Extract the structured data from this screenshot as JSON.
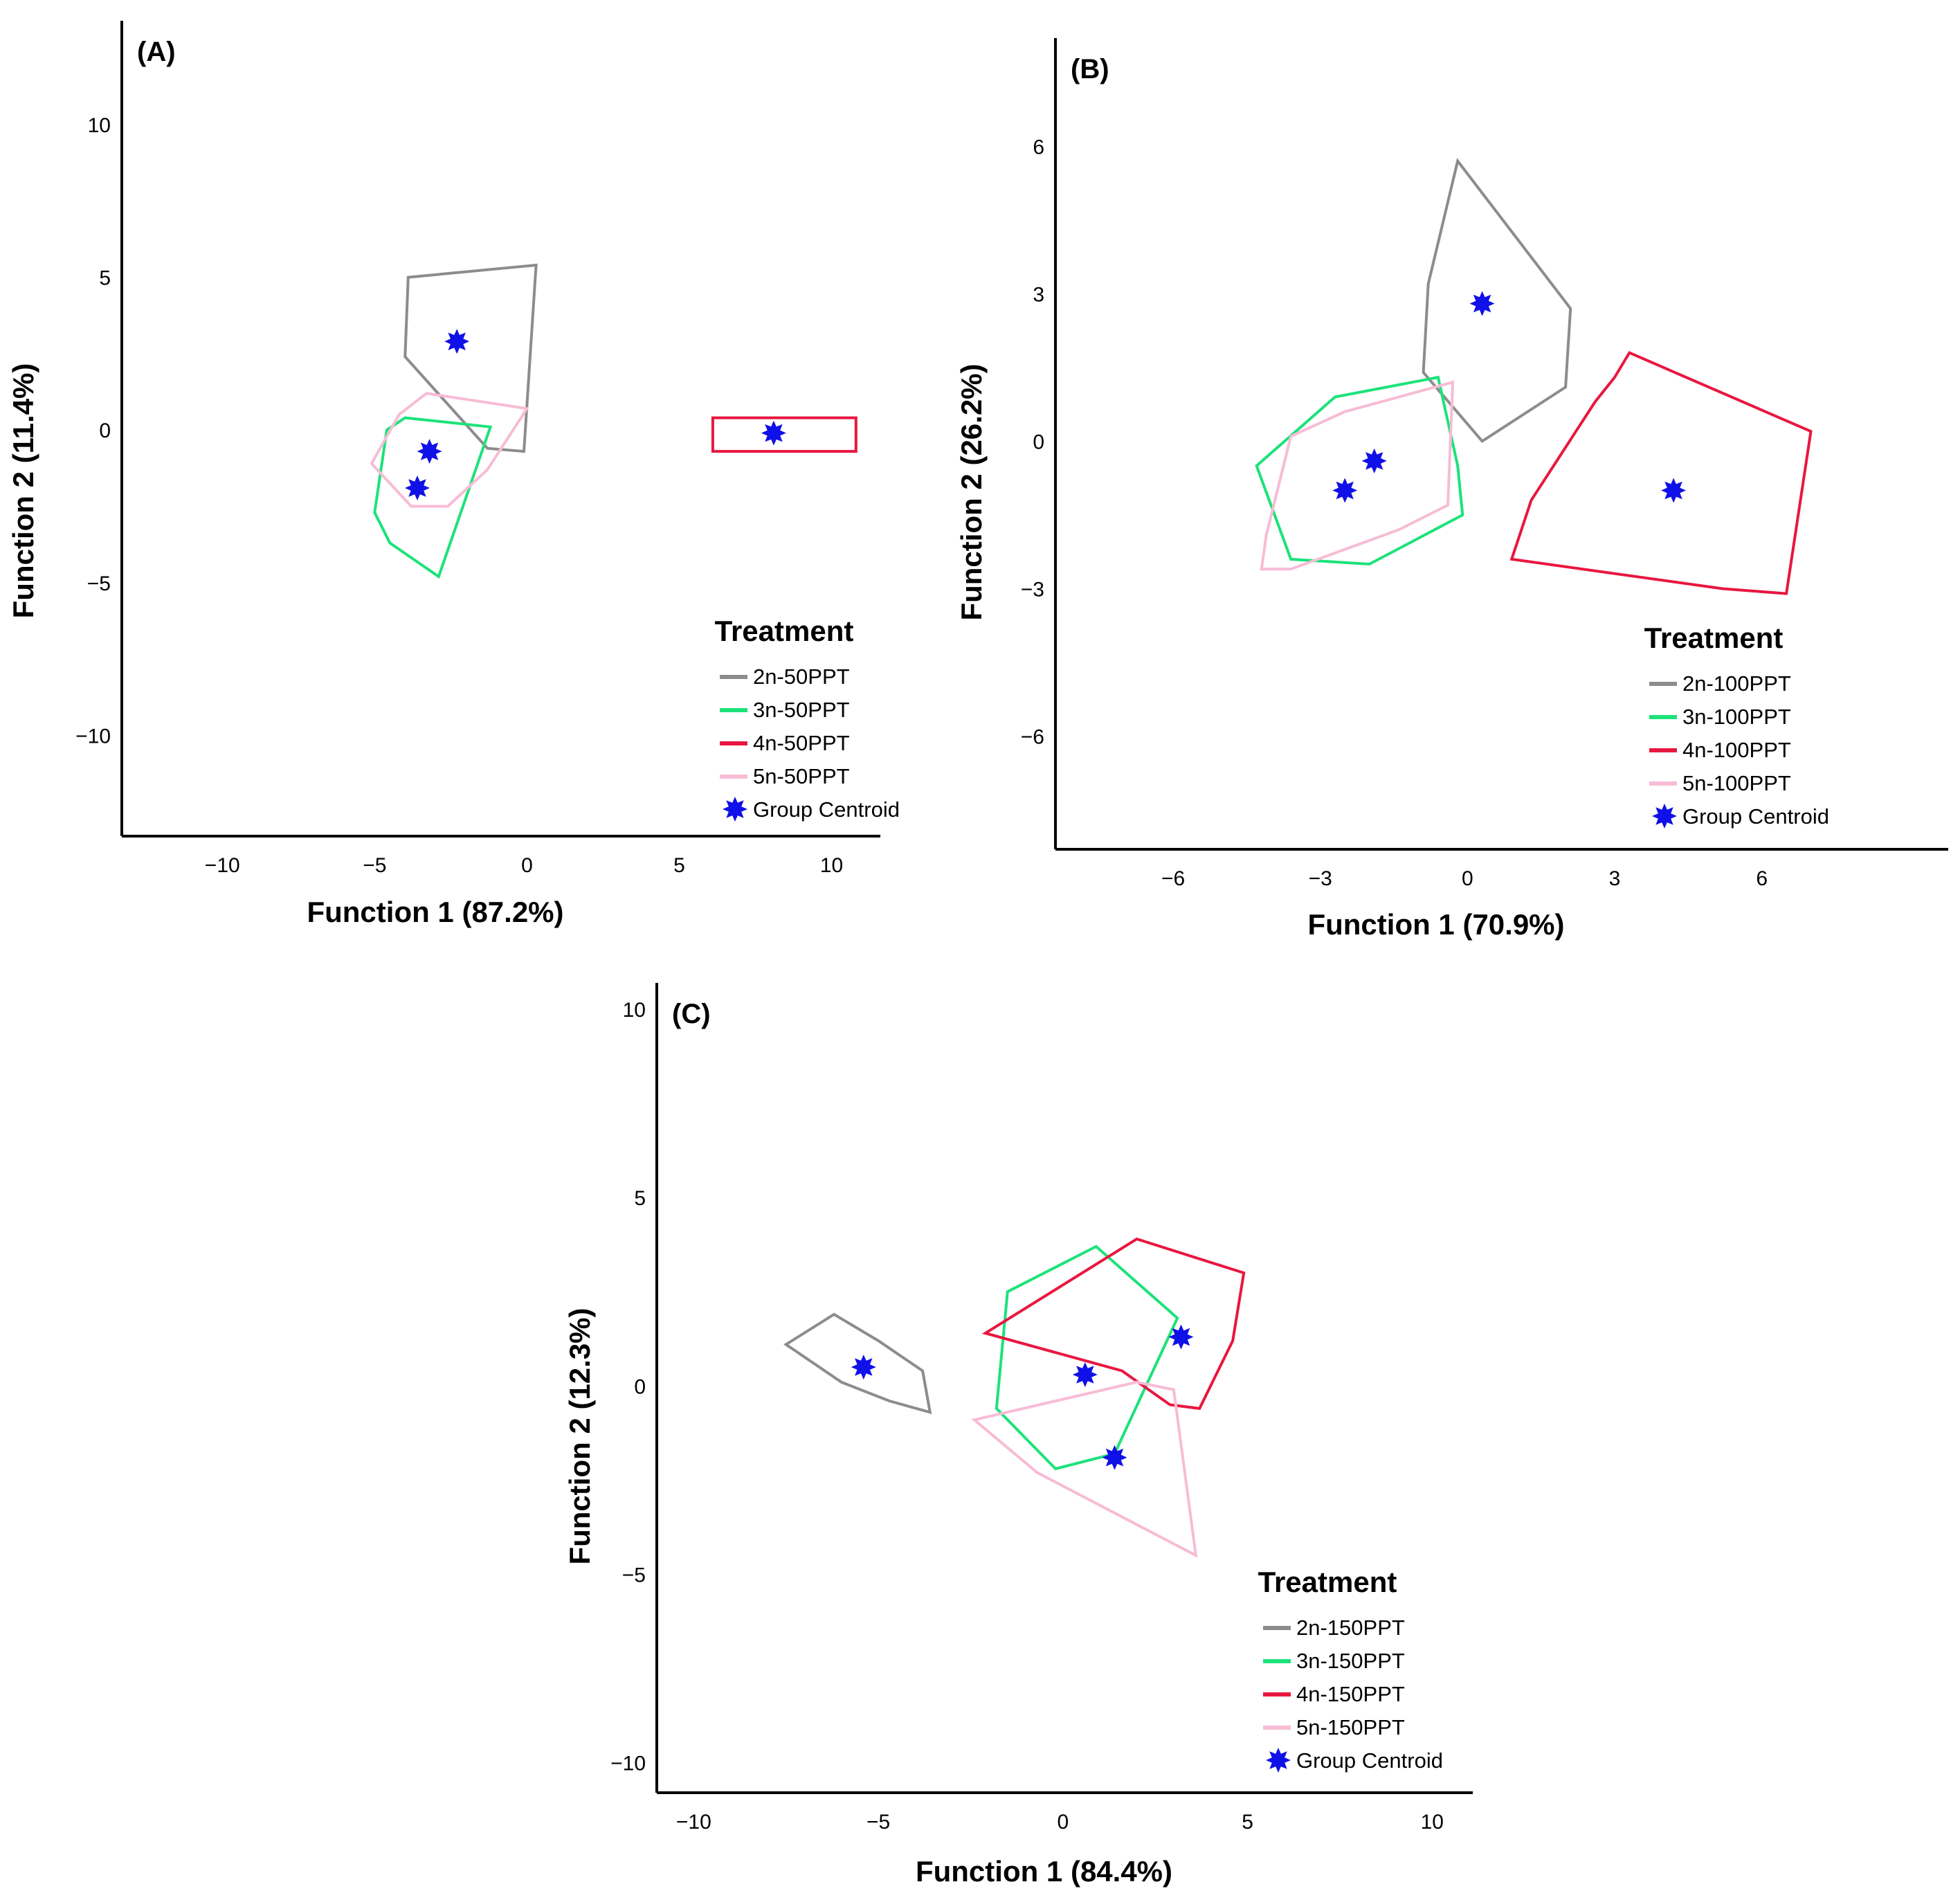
{
  "colors": {
    "2n": "#8c8c8c",
    "3n": "#1de27a",
    "4n": "#e8173f",
    "5n": "#f7bcd6",
    "centroid": "#1010e8",
    "axis": "#000000"
  },
  "chart_data": [
    {
      "type": "scatter",
      "panel_label": "(A)",
      "xlabel": "Function 1 (87.2%)",
      "ylabel": "Function 2 (11.4%)",
      "xlim": [
        -13.3,
        11.6
      ],
      "ylim": [
        -13.3,
        13.4
      ],
      "xticks": [
        -10,
        -5,
        0,
        5,
        10
      ],
      "yticks": [
        -10,
        -5,
        0,
        5,
        10
      ],
      "xtick_labels": [
        "−10",
        "−5",
        "0",
        "5",
        "10"
      ],
      "ytick_labels": [
        "−10",
        "−5",
        "0",
        "5",
        "10"
      ],
      "legend": {
        "title": "Treatment",
        "position": "bottom-right",
        "entries": [
          "2n-50PPT",
          "3n-50PPT",
          "4n-50PPT",
          "5n-50PPT",
          "Group Centroid"
        ]
      },
      "series": [
        {
          "name": "2n-50PPT",
          "color_key": "2n",
          "hull": [
            [
              -3.9,
              5.0
            ],
            [
              0.3,
              5.4
            ],
            [
              -0.1,
              -0.7
            ],
            [
              -1.3,
              -0.6
            ],
            [
              -4.0,
              2.4
            ]
          ],
          "centroid": [
            -2.3,
            2.9
          ]
        },
        {
          "name": "3n-50PPT",
          "color_key": "3n",
          "hull": [
            [
              -4.6,
              0.0
            ],
            [
              -4.0,
              0.4
            ],
            [
              -1.2,
              0.1
            ],
            [
              -2.9,
              -4.8
            ],
            [
              -4.5,
              -3.7
            ],
            [
              -5.0,
              -2.7
            ]
          ],
          "centroid": [
            -3.2,
            -0.7
          ]
        },
        {
          "name": "4n-50PPT",
          "color_key": "4n",
          "hull": [
            [
              6.1,
              0.4
            ],
            [
              10.8,
              0.4
            ],
            [
              10.8,
              -0.7
            ],
            [
              6.1,
              -0.7
            ]
          ],
          "centroid": [
            8.1,
            -0.1
          ]
        },
        {
          "name": "5n-50PPT",
          "color_key": "5n",
          "hull": [
            [
              -4.2,
              0.5
            ],
            [
              -3.3,
              1.2
            ],
            [
              0.0,
              0.7
            ],
            [
              -1.3,
              -1.3
            ],
            [
              -2.6,
              -2.5
            ],
            [
              -3.8,
              -2.5
            ],
            [
              -5.1,
              -1.1
            ]
          ],
          "centroid": [
            -3.6,
            -1.9
          ]
        }
      ]
    },
    {
      "type": "scatter",
      "panel_label": "(B)",
      "xlabel": "Function 1 (70.9%)",
      "ylabel": "Function 2 (26.2%)",
      "xlim": [
        -8.4,
        9.8
      ],
      "ylim": [
        -8.3,
        8.2
      ],
      "xticks": [
        -6,
        -3,
        0,
        3,
        6
      ],
      "yticks": [
        -6,
        -3,
        0,
        3,
        6
      ],
      "xtick_labels": [
        "−6",
        "−3",
        "0",
        "3",
        "6"
      ],
      "ytick_labels": [
        "−6",
        "−3",
        "0",
        "3",
        "6"
      ],
      "legend": {
        "title": "Treatment",
        "position": "bottom-right",
        "entries": [
          "2n-100PPT",
          "3n-100PPT",
          "4n-100PPT",
          "5n-100PPT",
          "Group Centroid"
        ]
      },
      "series": [
        {
          "name": "2n-100PPT",
          "color_key": "2n",
          "hull": [
            [
              -0.2,
              5.7
            ],
            [
              2.1,
              2.7
            ],
            [
              2.0,
              1.1
            ],
            [
              0.3,
              0.0
            ],
            [
              -0.9,
              1.4
            ],
            [
              -0.8,
              3.2
            ]
          ],
          "centroid": [
            0.3,
            2.8
          ]
        },
        {
          "name": "3n-100PPT",
          "color_key": "3n",
          "hull": [
            [
              -4.3,
              -0.5
            ],
            [
              -2.7,
              0.9
            ],
            [
              -0.6,
              1.3
            ],
            [
              -0.2,
              -0.5
            ],
            [
              -0.1,
              -1.5
            ],
            [
              -2.0,
              -2.5
            ],
            [
              -3.6,
              -2.4
            ]
          ],
          "centroid": [
            -2.5,
            -1.0
          ]
        },
        {
          "name": "4n-100PPT",
          "color_key": "4n",
          "hull": [
            [
              3.3,
              1.8
            ],
            [
              7.0,
              0.2
            ],
            [
              6.5,
              -3.1
            ],
            [
              5.2,
              -3.0
            ],
            [
              0.9,
              -2.4
            ],
            [
              1.3,
              -1.2
            ],
            [
              2.6,
              0.8
            ],
            [
              3.0,
              1.3
            ]
          ],
          "centroid": [
            4.2,
            -1.0
          ]
        },
        {
          "name": "5n-100PPT",
          "color_key": "5n",
          "hull": [
            [
              -3.6,
              0.1
            ],
            [
              -2.5,
              0.6
            ],
            [
              -0.3,
              1.2
            ],
            [
              -0.4,
              -1.3
            ],
            [
              -1.4,
              -1.8
            ],
            [
              -3.6,
              -2.6
            ],
            [
              -4.2,
              -2.6
            ],
            [
              -4.1,
              -1.9
            ]
          ],
          "centroid": [
            -1.9,
            -0.4
          ]
        }
      ]
    },
    {
      "type": "scatter",
      "panel_label": "(C)",
      "xlabel": "Function 1 (84.4%)",
      "ylabel": "Function 2 (12.3%)",
      "xlim": [
        -11.0,
        11.1
      ],
      "ylim": [
        -10.8,
        10.7
      ],
      "xticks": [
        -10,
        -5,
        0,
        5,
        10
      ],
      "yticks": [
        -10,
        -5,
        0,
        5,
        10
      ],
      "xtick_labels": [
        "−10",
        "−5",
        "0",
        "5",
        "10"
      ],
      "ytick_labels": [
        "−10",
        "−5",
        "0",
        "5",
        "10"
      ],
      "legend": {
        "title": "Treatment",
        "position": "bottom-right",
        "entries": [
          "2n-150PPT",
          "3n-150PPT",
          "4n-150PPT",
          "5n-150PPT",
          "Group Centroid"
        ]
      },
      "series": [
        {
          "name": "2n-150PPT",
          "color_key": "2n",
          "hull": [
            [
              -7.5,
              1.1
            ],
            [
              -6.2,
              1.9
            ],
            [
              -5.0,
              1.2
            ],
            [
              -3.8,
              0.4
            ],
            [
              -3.6,
              -0.7
            ],
            [
              -4.7,
              -0.4
            ],
            [
              -6.0,
              0.1
            ]
          ],
          "centroid": [
            -5.4,
            0.5
          ]
        },
        {
          "name": "3n-150PPT",
          "color_key": "3n",
          "hull": [
            [
              -1.5,
              2.5
            ],
            [
              0.9,
              3.7
            ],
            [
              3.1,
              1.8
            ],
            [
              1.4,
              -1.8
            ],
            [
              -0.2,
              -2.2
            ],
            [
              -1.8,
              -0.6
            ]
          ],
          "centroid": [
            1.4,
            -1.9
          ]
        },
        {
          "name": "4n-150PPT",
          "color_key": "4n",
          "hull": [
            [
              -2.1,
              1.4
            ],
            [
              2.0,
              3.9
            ],
            [
              4.9,
              3.0
            ],
            [
              4.6,
              1.2
            ],
            [
              3.7,
              -0.6
            ],
            [
              2.9,
              -0.5
            ],
            [
              1.6,
              0.4
            ]
          ],
          "centroid": [
            3.2,
            1.3
          ]
        },
        {
          "name": "5n-150PPT",
          "color_key": "5n",
          "hull": [
            [
              -2.4,
              -0.9
            ],
            [
              2.0,
              0.1
            ],
            [
              3.0,
              -0.1
            ],
            [
              3.6,
              -4.5
            ],
            [
              -0.7,
              -2.3
            ]
          ],
          "centroid": [
            0.6,
            0.3
          ]
        }
      ]
    }
  ]
}
